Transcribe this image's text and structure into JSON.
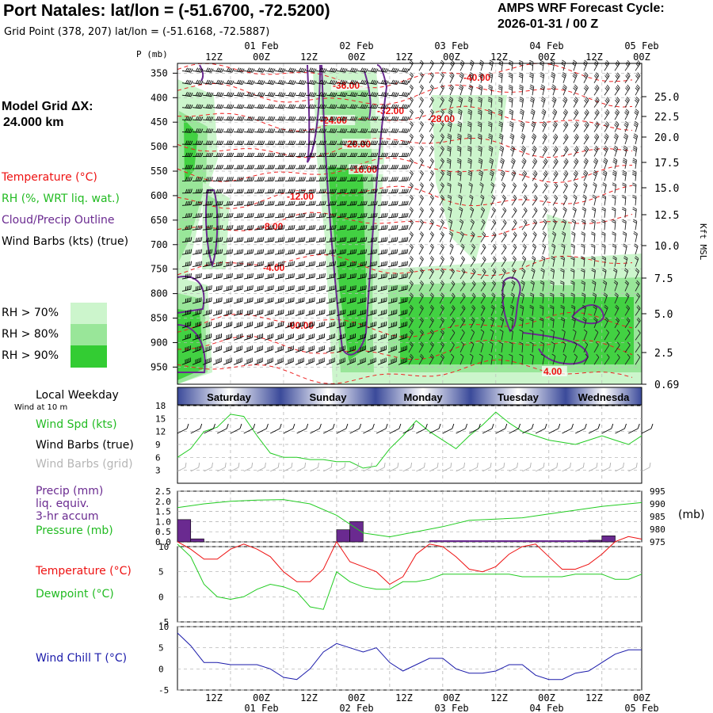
{
  "header": {
    "title": "Port Natales:  lat/lon = (-51.6700, -72.5200)",
    "subtitle": "Grid Point (378, 207) lat/lon = (-51.6168, -72.5887)",
    "cycle_line1": "AMPS WRF Forecast Cycle:",
    "cycle_line2": "2026-01-31 / 00  Z",
    "model_grid_line1": "Model Grid ΔX:",
    "model_grid_line2": "24.000 km"
  },
  "legend": {
    "temperature": "Temperature (°C)",
    "rh": "RH (%, WRT liq. wat.)",
    "cloud": "Cloud/Precip Outline",
    "wind": "Wind Barbs (kts) (true)",
    "rh_levels": [
      {
        "label": "RH > 70%",
        "color": "#ccf5cc"
      },
      {
        "label": "RH > 80%",
        "color": "#99e699"
      },
      {
        "label": "RH > 90%",
        "color": "#33cc33"
      }
    ]
  },
  "time_axis": {
    "hours_top": [
      "12Z",
      "00Z",
      "12Z",
      "00Z",
      "12Z",
      "00Z",
      "12Z",
      "00Z",
      "12Z",
      "00Z"
    ],
    "dates": [
      "01 Feb",
      "02 Feb",
      "03 Feb",
      "04 Feb",
      "05 Feb"
    ],
    "hours_bottom": [
      "12Z",
      "00Z",
      "12Z",
      "00Z",
      "12Z",
      "00Z",
      "12Z",
      "00Z",
      "12Z",
      "00Z"
    ]
  },
  "weekday": {
    "label": "Local Weekday",
    "sublabel": "Wind at 10 m",
    "days": [
      "Saturday",
      "Sunday",
      "Monday",
      "Tuesday",
      "Wednesda"
    ]
  },
  "colors": {
    "temp": "#ee1111",
    "green": "#22cc22",
    "purple": "#6a2a90",
    "blue": "#1a1aaa",
    "grid": "#999999",
    "gray": "#b0b0b0"
  },
  "chart_data": [
    {
      "type": "heatmap",
      "ylabel_left": "P (mb)",
      "ylabel_right": "Kft MSL",
      "pressure_ticks": [
        350,
        400,
        450,
        500,
        550,
        600,
        650,
        700,
        750,
        800,
        850,
        900,
        950
      ],
      "height_ticks": [
        "25.0",
        "22.5",
        "20.0",
        "17.5",
        "15.0",
        "12.5",
        "10.0",
        "7.5",
        "5.0",
        "2.5",
        "0.69"
      ],
      "isotherm_labels": [
        "-36.00",
        "-40.00",
        "-32.00",
        "-28.00",
        "-24.00",
        "-20.00",
        "-16.00",
        "-12.00",
        "-8.00",
        "-4.00",
        "-00.00",
        "4.00"
      ]
    },
    {
      "type": "line",
      "title": "Wind Spd (kts)",
      "label2": "Wind Barbs (true)",
      "label3": "Wind Barbs (grid)",
      "yticks": [
        18,
        15,
        12,
        9,
        6,
        3
      ],
      "ylim": [
        0,
        18
      ],
      "x": [
        0,
        3,
        6,
        9,
        12,
        15,
        18,
        21,
        24,
        27,
        30,
        33,
        36,
        39,
        42,
        45,
        48,
        51,
        54,
        57,
        60,
        63,
        66,
        69,
        72,
        75,
        78,
        81,
        84,
        87,
        90,
        93,
        96,
        99,
        102,
        105
      ],
      "values": [
        6,
        8,
        12,
        13,
        16,
        15.5,
        11,
        7,
        6,
        6,
        5.5,
        5.5,
        5,
        5,
        3.5,
        4,
        8,
        11,
        14.5,
        12,
        10,
        8,
        11,
        13.5,
        16.5,
        14,
        12,
        11,
        10,
        9.5,
        9,
        10,
        11,
        10,
        9,
        11
      ]
    },
    {
      "type": "bar",
      "title": "Precip (mm)",
      "label2": "liq. equiv.",
      "label3": "3-hr accum",
      "label4": "Pressure (mb)",
      "right_label": "(mb)",
      "precip_ticks": [
        "2.5",
        "2.0",
        "1.5",
        "1.0",
        "0.5",
        "0.0"
      ],
      "pressure_ticks": [
        995,
        990,
        985,
        980,
        975
      ],
      "precip_ylim": [
        0,
        2.5
      ],
      "pressure_ylim": [
        975,
        995
      ],
      "precip_x": [
        0,
        3,
        36,
        39,
        93,
        96
      ],
      "precip": [
        1.1,
        0.15,
        0.6,
        1.0,
        0.08,
        0.3
      ],
      "pressure_x": [
        0,
        6,
        12,
        18,
        24,
        30,
        36,
        42,
        48,
        54,
        60,
        66,
        72,
        78,
        84,
        90,
        96,
        102,
        105
      ],
      "pressure": [
        988.5,
        990,
        991,
        991.5,
        991.7,
        990,
        985.5,
        978.5,
        977,
        979,
        981,
        983.5,
        984,
        984.5,
        986,
        987.5,
        989,
        990,
        990.5
      ]
    },
    {
      "type": "line",
      "series": [
        {
          "name": "Temperature (°C)",
          "x": [
            0,
            3,
            6,
            9,
            12,
            15,
            18,
            21,
            24,
            27,
            30,
            33,
            36,
            39,
            42,
            45,
            48,
            51,
            54,
            57,
            60,
            63,
            66,
            69,
            72,
            75,
            78,
            81,
            84,
            87,
            90,
            93,
            96,
            99,
            102,
            105
          ],
          "values": [
            11,
            9.5,
            7.5,
            7.5,
            9.5,
            10.5,
            9.5,
            8,
            5,
            3,
            3,
            5.5,
            11,
            7,
            6,
            5,
            2.5,
            4,
            8.5,
            10.5,
            10,
            8,
            5.5,
            5,
            6,
            8.5,
            10,
            10.5,
            8,
            5.5,
            5.5,
            6.5,
            8.5,
            11,
            12,
            11.5
          ]
        },
        {
          "name": "Dewpoint (°C)",
          "x": [
            0,
            3,
            6,
            9,
            12,
            15,
            18,
            21,
            24,
            27,
            30,
            33,
            36,
            39,
            42,
            45,
            48,
            51,
            54,
            57,
            60,
            63,
            66,
            69,
            72,
            75,
            78,
            81,
            84,
            87,
            90,
            93,
            96,
            99,
            102,
            105
          ],
          "values": [
            10.5,
            8,
            2.5,
            0,
            -0.5,
            0,
            1.5,
            2.5,
            2,
            1,
            -2,
            -2.5,
            5,
            3,
            2,
            1.5,
            1.5,
            3,
            3,
            3.5,
            4.5,
            4.5,
            4.5,
            4.5,
            4.5,
            4.5,
            4,
            4,
            4,
            4,
            4.5,
            4.5,
            4.5,
            3.5,
            3.5,
            4.5
          ]
        }
      ],
      "yticks": [
        10,
        5,
        0,
        -5
      ],
      "ylim": [
        -5,
        10
      ]
    },
    {
      "type": "line",
      "title": "Wind Chill T (°C)",
      "yticks": [
        10,
        5,
        0,
        -5
      ],
      "ylim": [
        -5,
        10
      ],
      "x": [
        0,
        3,
        6,
        9,
        12,
        15,
        18,
        21,
        24,
        27,
        30,
        33,
        36,
        39,
        42,
        45,
        48,
        51,
        54,
        57,
        60,
        63,
        66,
        69,
        72,
        75,
        78,
        81,
        84,
        87,
        90,
        93,
        96,
        99,
        102,
        105
      ],
      "values": [
        8.5,
        5.5,
        1.5,
        1.5,
        1,
        1,
        1,
        0,
        -2,
        -2.5,
        0,
        4,
        6,
        5,
        4,
        5,
        1.5,
        -0.5,
        1,
        2.5,
        2.5,
        0,
        -1,
        -1,
        -0.5,
        1,
        1,
        -1.5,
        -2.5,
        -2.5,
        -1,
        -0.5,
        1.5,
        3.5,
        4.5,
        4.5
      ]
    }
  ]
}
